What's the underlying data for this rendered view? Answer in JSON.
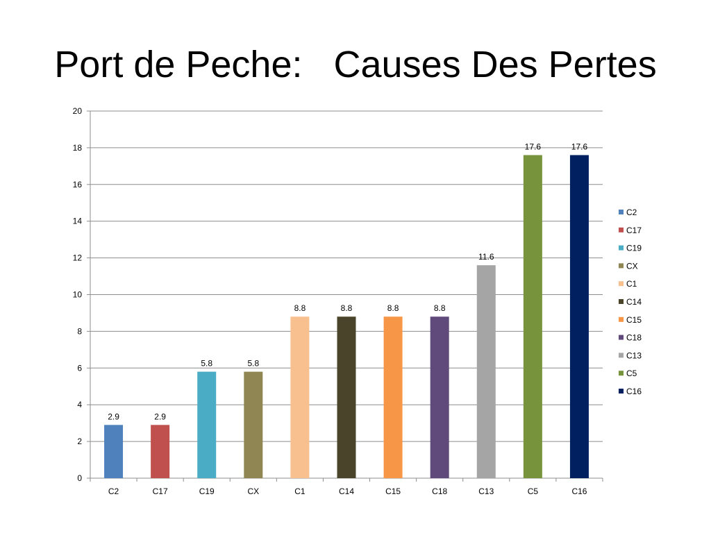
{
  "slide": {
    "title": "Port de Peche:   Causes Des Pertes"
  },
  "chart_data": {
    "type": "bar",
    "categories": [
      "C2",
      "C17",
      "C19",
      "CX",
      "C1",
      "C14",
      "C15",
      "C18",
      "C13",
      "C5",
      "C16"
    ],
    "values": [
      2.9,
      2.9,
      5.8,
      5.8,
      8.8,
      8.8,
      8.8,
      8.8,
      11.6,
      17.6,
      17.6
    ],
    "data_labels": [
      "2.9",
      "2.9",
      "5.8",
      "5.8",
      "8.8",
      "8.8",
      "8.8",
      "8.8",
      "11.6",
      "17.6",
      "17.6"
    ],
    "colors": [
      "#4f81bd",
      "#c0504d",
      "#4bacc6",
      "#8f8654",
      "#f9c08f",
      "#4a452a",
      "#f79646",
      "#604a7b",
      "#a5a5a5",
      "#77933c",
      "#002060"
    ],
    "ylim": [
      0,
      20
    ],
    "yticks": [
      0,
      2,
      4,
      6,
      8,
      10,
      12,
      14,
      16,
      18,
      20
    ],
    "grid": true,
    "legend_position": "right",
    "title": "",
    "xlabel": "",
    "ylabel": ""
  }
}
